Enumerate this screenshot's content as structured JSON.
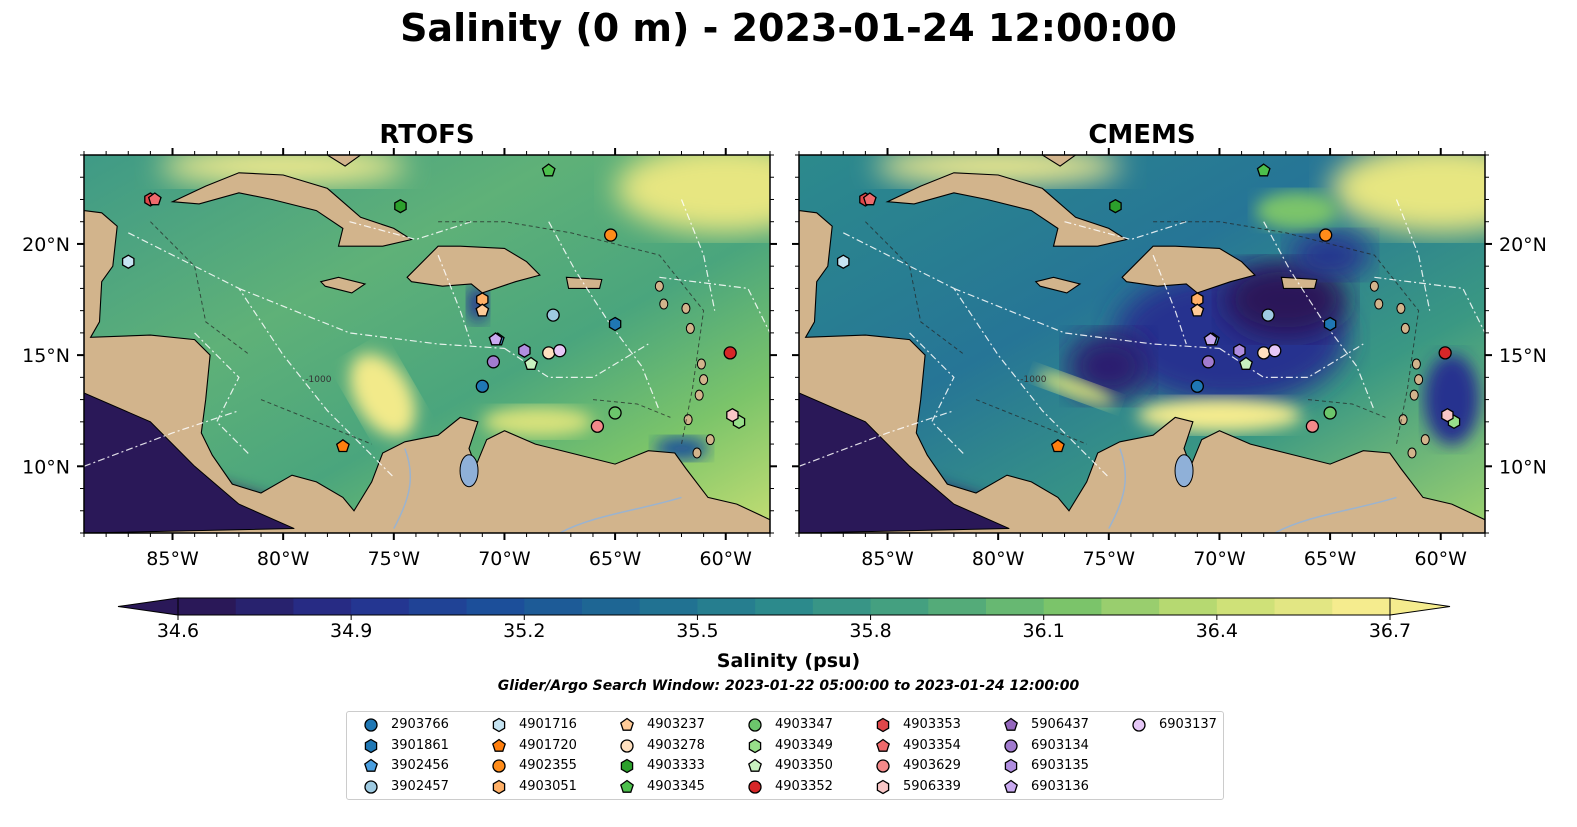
{
  "title": "Salinity (0 m) - 2023-01-24 12:00:00",
  "panels": [
    {
      "title": "RTOFS",
      "variant": "rtofs"
    },
    {
      "title": "CMEMS",
      "variant": "cmems"
    }
  ],
  "map": {
    "lon_range": [
      -89,
      -58
    ],
    "lat_range": [
      7,
      24
    ],
    "lon_ticks": [
      "85°W",
      "80°W",
      "75°W",
      "70°W",
      "65°W",
      "60°W"
    ],
    "lon_tick_values": [
      -85,
      -80,
      -75,
      -70,
      -65,
      -60
    ],
    "lat_ticks": [
      "10°N",
      "15°N",
      "20°N"
    ],
    "lat_tick_values": [
      10,
      15,
      20
    ],
    "land_color": "#d2b48c",
    "contour_label": "-1000"
  },
  "chart_data": {
    "type": "heatmap",
    "variable": "Salinity (psu)",
    "colorbar": {
      "min": 34.6,
      "max": 36.7,
      "ticks": [
        "34.6",
        "34.9",
        "35.2",
        "35.5",
        "35.8",
        "36.1",
        "36.4",
        "36.7"
      ],
      "extend": "both",
      "colormap_stops": [
        "#2a1858",
        "#26308f",
        "#1c4f9a",
        "#1e6c93",
        "#2c8a8c",
        "#4aa57d",
        "#7bc46a",
        "#c5de73",
        "#f5ec8e"
      ]
    },
    "label": "Salinity (psu)"
  },
  "search_window": "Glider/Argo Search Window: 2023-01-22 05:00:00 to 2023-01-24 12:00:00",
  "legend": [
    {
      "id": "2903766",
      "marker": "circle",
      "color": "#1f77b4"
    },
    {
      "id": "3901861",
      "marker": "hexagon",
      "color": "#1f77b4"
    },
    {
      "id": "3902456",
      "marker": "pentagon",
      "color": "#4a9fe0"
    },
    {
      "id": "3902457",
      "marker": "circle",
      "color": "#9ecae1"
    },
    {
      "id": "4901716",
      "marker": "hexagon",
      "color": "#c6e4f2"
    },
    {
      "id": "4901720",
      "marker": "pentagon",
      "color": "#ff7f0e"
    },
    {
      "id": "4902355",
      "marker": "circle",
      "color": "#ff8c1a"
    },
    {
      "id": "4903051",
      "marker": "hexagon",
      "color": "#ffb067"
    },
    {
      "id": "4903237",
      "marker": "pentagon",
      "color": "#ffcb98"
    },
    {
      "id": "4903278",
      "marker": "circle",
      "color": "#ffe0c0"
    },
    {
      "id": "4903333",
      "marker": "hexagon",
      "color": "#2ca02c"
    },
    {
      "id": "4903345",
      "marker": "pentagon",
      "color": "#4cbf4c"
    },
    {
      "id": "4903347",
      "marker": "circle",
      "color": "#6cc66c"
    },
    {
      "id": "4903349",
      "marker": "hexagon",
      "color": "#98df8a"
    },
    {
      "id": "4903350",
      "marker": "pentagon",
      "color": "#c9f2c0"
    },
    {
      "id": "4903352",
      "marker": "circle",
      "color": "#d62728"
    },
    {
      "id": "4903353",
      "marker": "hexagon",
      "color": "#e0474a"
    },
    {
      "id": "4903354",
      "marker": "pentagon",
      "color": "#ef6a6c"
    },
    {
      "id": "4903629",
      "marker": "circle",
      "color": "#f4898a"
    },
    {
      "id": "5906339",
      "marker": "hexagon",
      "color": "#f9c7c7"
    },
    {
      "id": "5906437",
      "marker": "pentagon",
      "color": "#9467bd"
    },
    {
      "id": "6903134",
      "marker": "circle",
      "color": "#a17bcf"
    },
    {
      "id": "6903135",
      "marker": "hexagon",
      "color": "#b08ee0"
    },
    {
      "id": "6903136",
      "marker": "pentagon",
      "color": "#c9aaf0"
    },
    {
      "id": "6903137",
      "marker": "circle",
      "color": "#e6c8f7"
    }
  ],
  "floats": [
    {
      "id": "2903766",
      "lon": -71.0,
      "lat": 13.6
    },
    {
      "id": "3901861",
      "lon": -65.0,
      "lat": 16.4
    },
    {
      "id": "3902456",
      "lon": -70.3,
      "lat": 15.7
    },
    {
      "id": "3902457",
      "lon": -67.8,
      "lat": 16.8
    },
    {
      "id": "4901716",
      "lon": -87.0,
      "lat": 19.2
    },
    {
      "id": "4901720",
      "lon": -77.3,
      "lat": 10.9
    },
    {
      "id": "4902355",
      "lon": -65.2,
      "lat": 20.4
    },
    {
      "id": "4903051",
      "lon": -71.0,
      "lat": 17.5
    },
    {
      "id": "4903237",
      "lon": -71.0,
      "lat": 17.0
    },
    {
      "id": "4903278",
      "lon": -68.0,
      "lat": 15.1
    },
    {
      "id": "4903333",
      "lon": -74.7,
      "lat": 21.7
    },
    {
      "id": "4903345",
      "lon": -68.0,
      "lat": 23.3
    },
    {
      "id": "4903347",
      "lon": -65.0,
      "lat": 12.4
    },
    {
      "id": "4903349",
      "lon": -59.4,
      "lat": 12.0
    },
    {
      "id": "4903350",
      "lon": -68.8,
      "lat": 14.6
    },
    {
      "id": "4903352",
      "lon": -59.8,
      "lat": 15.1
    },
    {
      "id": "4903353",
      "lon": -86.0,
      "lat": 22.0
    },
    {
      "id": "4903354",
      "lon": -85.8,
      "lat": 22.0
    },
    {
      "id": "4903629",
      "lon": -65.8,
      "lat": 11.8
    },
    {
      "id": "5906339",
      "lon": -59.7,
      "lat": 12.3
    },
    {
      "id": "5906437",
      "lon": -70.4,
      "lat": 15.7
    },
    {
      "id": "6903134",
      "lon": -70.5,
      "lat": 14.7
    },
    {
      "id": "6903135",
      "lon": -69.1,
      "lat": 15.2
    },
    {
      "id": "6903136",
      "lon": -70.4,
      "lat": 15.7
    },
    {
      "id": "6903137",
      "lon": -67.5,
      "lat": 15.2
    }
  ]
}
